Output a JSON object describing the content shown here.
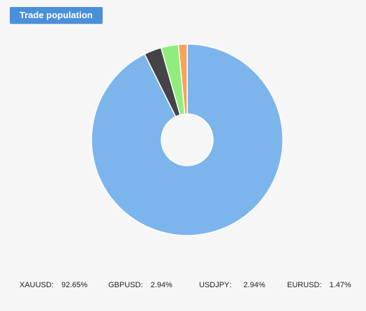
{
  "header": {
    "tab_label": "Trade population"
  },
  "chart_data": {
    "type": "pie",
    "title": "",
    "slices": [
      {
        "label": "XAUUSD",
        "value": 92.65,
        "value_text": "92.65%",
        "color": "#7cb5ec"
      },
      {
        "label": "GBPUSD",
        "value": 2.94,
        "value_text": "2.94%",
        "color": "#434348"
      },
      {
        "label": "USDJPY",
        "value": 2.94,
        "value_text": "2.94%",
        "color": "#90ed7d"
      },
      {
        "label": "EURUSD",
        "value": 1.47,
        "value_text": "1.47%",
        "color": "#f7a35c"
      }
    ],
    "donut": true,
    "legend_position": "bottom"
  },
  "colors": {
    "background": "#f6f6f6",
    "button": "#4a90d9"
  }
}
